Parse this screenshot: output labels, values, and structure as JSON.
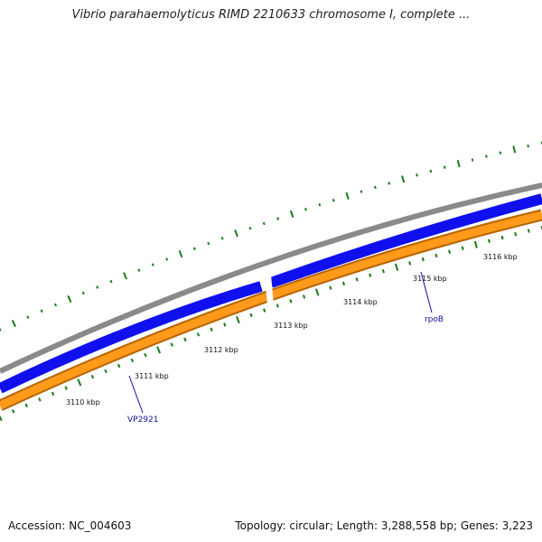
{
  "title": "Vibrio parahaemolyticus RIMD 2210633 chromosome I, complete ...",
  "footer": {
    "accession": "Accession: NC_004603",
    "topology": "Topology: circular; Length: 3,288,558 bp; Genes: 3,223"
  },
  "scale_labels": [
    "3110 kbp",
    "3111 kbp",
    "3112 kbp",
    "3113 kbp",
    "3114 kbp",
    "3115 kbp",
    "3116 kbp"
  ],
  "genes": [
    {
      "name": "VP2921"
    },
    {
      "name": "rpoB"
    }
  ],
  "colors": {
    "backbone": "#8a8a8a",
    "forward_strand": "#1010ee",
    "reverse_strand": "#ff9a1a",
    "reverse_edge": "#b86400",
    "gc_ticks": "#1a7a1a",
    "scale_ticks": "#1a7a1a",
    "gene_label": "#1010a0"
  }
}
